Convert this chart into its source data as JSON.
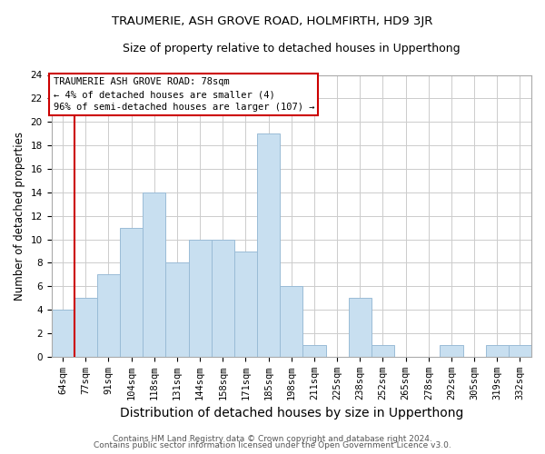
{
  "title": "TRAUMERIE, ASH GROVE ROAD, HOLMFIRTH, HD9 3JR",
  "subtitle": "Size of property relative to detached houses in Upperthong",
  "xlabel": "Distribution of detached houses by size in Upperthong",
  "ylabel": "Number of detached properties",
  "footer_line1": "Contains HM Land Registry data © Crown copyright and database right 2024.",
  "footer_line2": "Contains public sector information licensed under the Open Government Licence v3.0.",
  "bar_labels": [
    "64sqm",
    "77sqm",
    "91sqm",
    "104sqm",
    "118sqm",
    "131sqm",
    "144sqm",
    "158sqm",
    "171sqm",
    "185sqm",
    "198sqm",
    "211sqm",
    "225sqm",
    "238sqm",
    "252sqm",
    "265sqm",
    "278sqm",
    "292sqm",
    "305sqm",
    "319sqm",
    "332sqm"
  ],
  "bar_values": [
    4,
    5,
    7,
    11,
    14,
    8,
    10,
    10,
    9,
    19,
    6,
    1,
    0,
    5,
    1,
    0,
    0,
    1,
    0,
    1,
    1
  ],
  "bar_color": "#c8dff0",
  "bar_edge_color": "#9abcd6",
  "grid_color": "#cccccc",
  "vline_color": "#cc0000",
  "annotation_title": "TRAUMERIE ASH GROVE ROAD: 78sqm",
  "annotation_line2": "← 4% of detached houses are smaller (4)",
  "annotation_line3": "96% of semi-detached houses are larger (107) →",
  "annotation_box_color": "#ffffff",
  "annotation_box_edge": "#cc0000",
  "ylim": [
    0,
    24
  ],
  "yticks": [
    0,
    2,
    4,
    6,
    8,
    10,
    12,
    14,
    16,
    18,
    20,
    22,
    24
  ],
  "title_fontsize": 9.5,
  "subtitle_fontsize": 9,
  "ylabel_fontsize": 8.5,
  "xlabel_fontsize": 10,
  "tick_fontsize": 7.5,
  "footer_fontsize": 6.5,
  "ann_fontsize": 7.5
}
